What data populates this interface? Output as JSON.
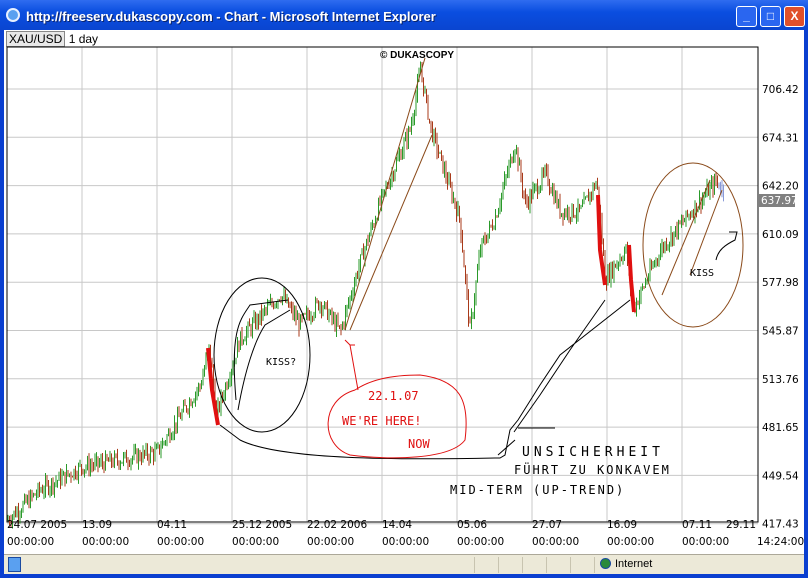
{
  "window": {
    "title": "http://freeserv.dukascopy.com - Chart - Microsoft Internet Explorer",
    "min": "_",
    "max": "□",
    "close": "X"
  },
  "symbol": "XAU/USD",
  "period": "1 day",
  "watermark": "© DUKASCOPY",
  "status": {
    "zone": "Internet"
  },
  "chart_data": {
    "type": "candlestick",
    "instrument": "XAU/USD",
    "timeframe": "1 day",
    "y_ticks": [
      "706.42",
      "674.31",
      "642.20",
      "610.09",
      "577.98",
      "545.87",
      "513.76",
      "481.65",
      "449.54",
      "417.43"
    ],
    "ylim": [
      417.43,
      722
    ],
    "x_ticks": [
      {
        "date": "24.07 2005",
        "time": "00:00:00"
      },
      {
        "date": "13.09",
        "time": "00:00:00"
      },
      {
        "date": "04.11",
        "time": "00:00:00"
      },
      {
        "date": "25.12 2005",
        "time": "00:00:00"
      },
      {
        "date": "22.02 2006",
        "time": "00:00:00"
      },
      {
        "date": "14.04",
        "time": "00:00:00"
      },
      {
        "date": "05.06",
        "time": "00:00:00"
      },
      {
        "date": "27.07",
        "time": "00:00:00"
      },
      {
        "date": "16.09",
        "time": "00:00:00"
      },
      {
        "date": "07.11",
        "time": "00:00:00"
      },
      {
        "date": "29.11",
        "time": "14:24:00"
      }
    ],
    "current_price": "637.97",
    "grid": true,
    "colors": {
      "up": "#2a9a2a",
      "down": "#a83a1a",
      "highlight": "#e01010",
      "grid": "#c8c8c8",
      "price_tag": "#808080"
    },
    "approx_close": [
      [
        "2005-07-24",
        420
      ],
      [
        "2005-08-16",
        440
      ],
      [
        "2005-09-13",
        455
      ],
      [
        "2005-10-10",
        460
      ],
      [
        "2005-11-04",
        465
      ],
      [
        "2005-12-04",
        510
      ],
      [
        "2005-12-10",
        535
      ],
      [
        "2005-12-15",
        490
      ],
      [
        "2005-12-31",
        540
      ],
      [
        "2006-01-28",
        570
      ],
      [
        "2006-02-10",
        550
      ],
      [
        "2006-02-24",
        565
      ],
      [
        "2006-03-10",
        545
      ],
      [
        "2006-03-23",
        590
      ],
      [
        "2006-04-06",
        630
      ],
      [
        "2006-04-27",
        680
      ],
      [
        "2006-05-04",
        720
      ],
      [
        "2006-05-11",
        680
      ],
      [
        "2006-05-21",
        650
      ],
      [
        "2006-05-31",
        620
      ],
      [
        "2006-06-07",
        545
      ],
      [
        "2006-06-14",
        600
      ],
      [
        "2006-06-24",
        620
      ],
      [
        "2006-07-08",
        670
      ],
      [
        "2006-07-15",
        630
      ],
      [
        "2006-07-29",
        650
      ],
      [
        "2006-08-08",
        625
      ],
      [
        "2006-08-22",
        625
      ],
      [
        "2006-09-02",
        645
      ],
      [
        "2006-09-08",
        580
      ],
      [
        "2006-09-22",
        600
      ],
      [
        "2006-09-27",
        560
      ],
      [
        "2006-10-16",
        600
      ],
      [
        "2006-11-06",
        625
      ],
      [
        "2006-11-23",
        645
      ],
      [
        "2006-11-29",
        637.97
      ]
    ]
  },
  "annotations": {
    "kiss1": "KISS?",
    "kiss2": "KISS",
    "date_note": "22.1.07",
    "here_note_1": "WE'RE HERE!",
    "here_note_2": "NOW",
    "german_1": "UNSICHERHEIT",
    "german_2": "FÜHRT ZU KONKAVEM",
    "german_3": "MID-TERM (UP-TREND)"
  }
}
